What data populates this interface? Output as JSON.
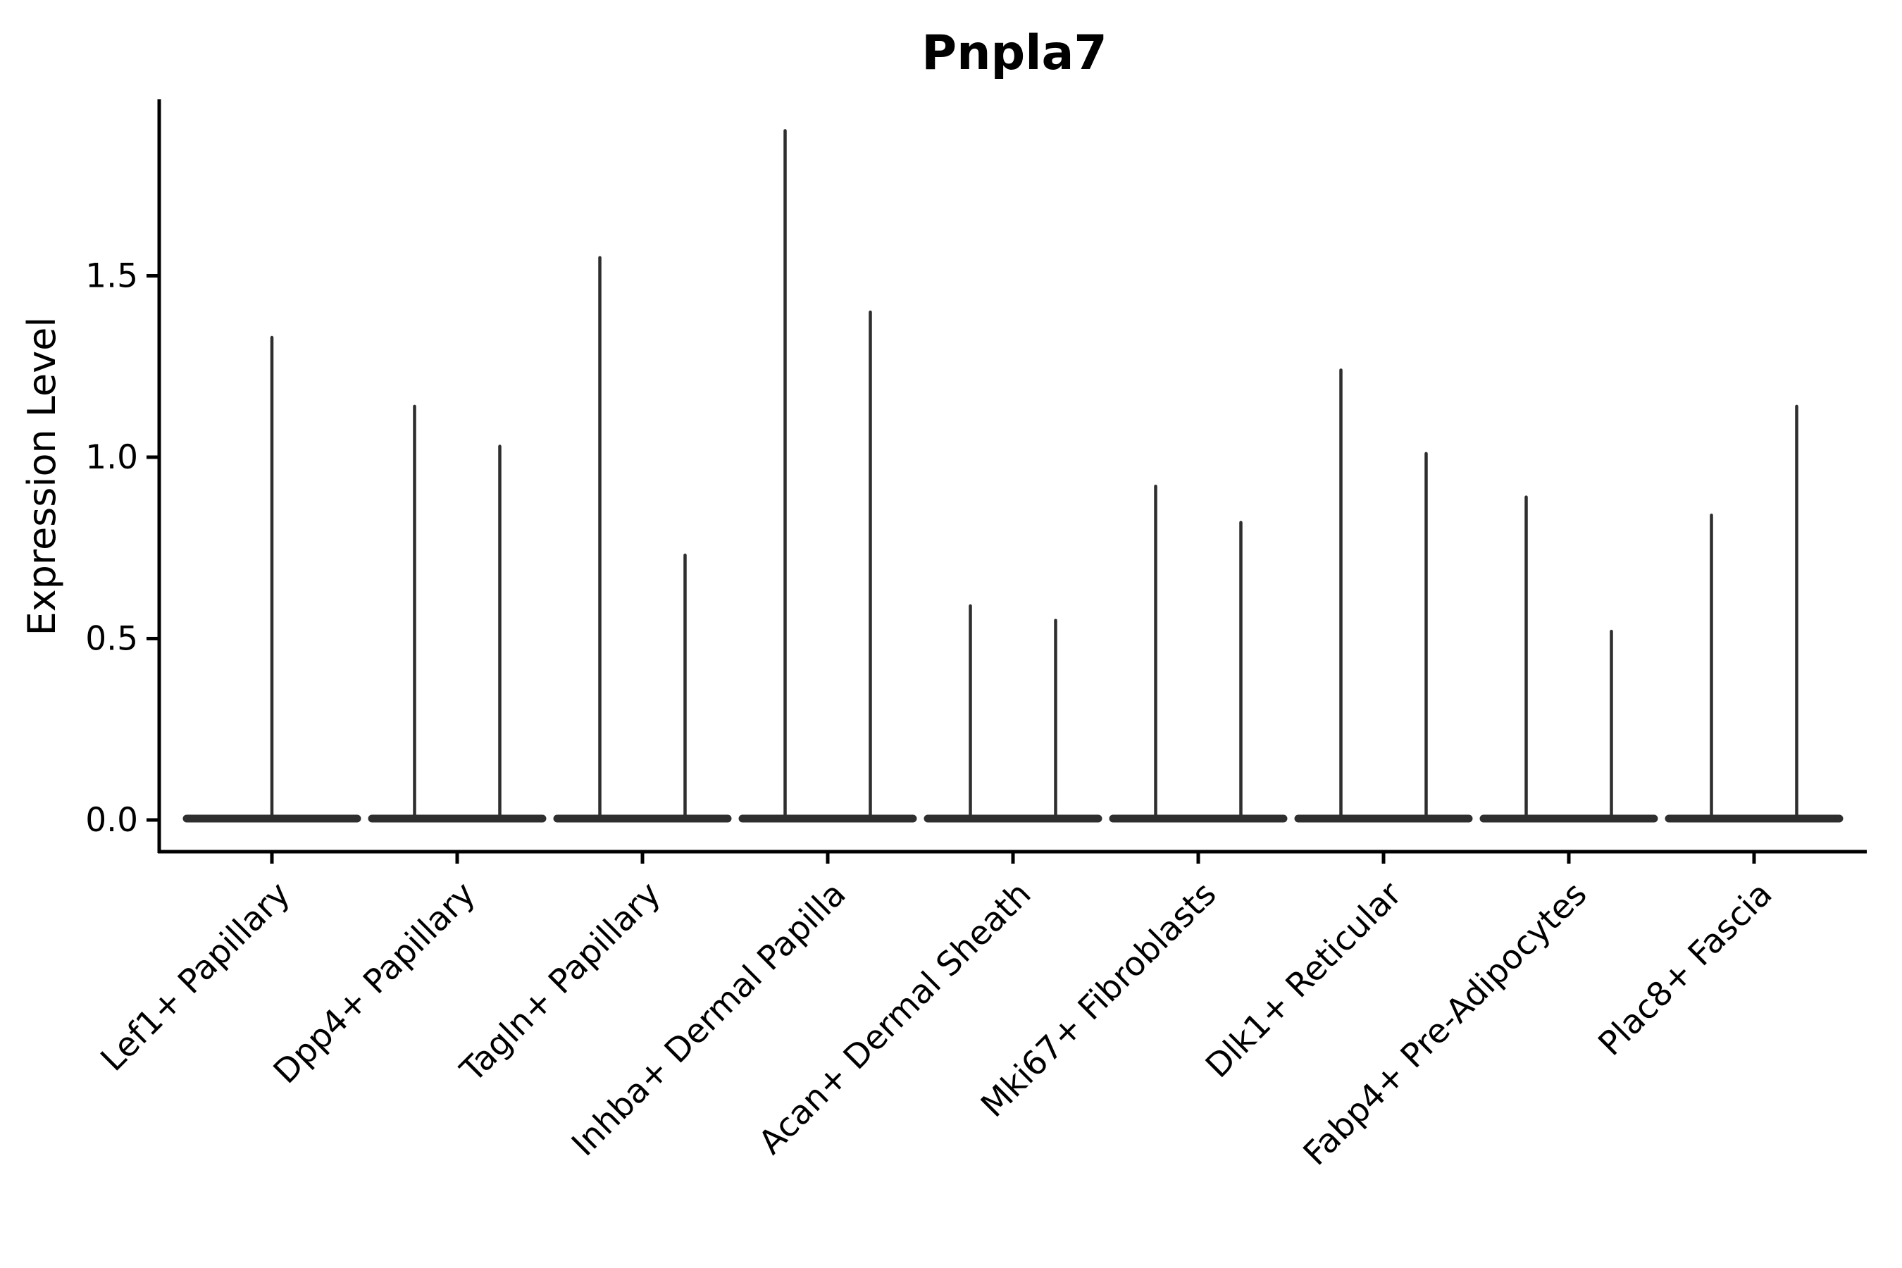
{
  "figure": {
    "title": "Pnpla7",
    "background_color": "#ffffff",
    "axis_color": "#000000",
    "violin_color": "#2e2e2e"
  },
  "chart_data": {
    "type": "violin",
    "title": "Pnpla7",
    "xlabel": "",
    "ylabel": "Expression Level",
    "ylim": [
      -0.09,
      1.99
    ],
    "ytick_labels": [
      "0.0",
      "0.5",
      "1.0",
      "1.5"
    ],
    "ytick_values": [
      0.0,
      0.5,
      1.0,
      1.5
    ],
    "grid": false,
    "legend": "none",
    "description": "Needle-thin violins: each group shows a wide flat base at expression 0 and narrow spikes rising to the maximum expression value.",
    "categories": [
      "Lef1+ Papillary",
      "Dpp4+ Papillary",
      "Tagln+ Papillary",
      "Inhba+ Dermal Papilla",
      "Acan+ Dermal Sheath",
      "Mki67+ Fibroblasts",
      "Dlk1+ Reticular",
      "Fabp4+ Pre-Adipocytes",
      "Plac8+ Fascia"
    ],
    "base_value": 0.0,
    "base_halfwidth_frac": 0.46,
    "groups": [
      {
        "label": "Lef1+ Papillary",
        "spikes": [
          {
            "offset_frac": 0.0,
            "max": 1.33
          }
        ]
      },
      {
        "label": "Dpp4+ Papillary",
        "spikes": [
          {
            "offset_frac": -0.23,
            "max": 1.14
          },
          {
            "offset_frac": 0.23,
            "max": 1.03
          }
        ]
      },
      {
        "label": "Tagln+ Papillary",
        "spikes": [
          {
            "offset_frac": -0.23,
            "max": 1.55
          },
          {
            "offset_frac": 0.23,
            "max": 0.73
          }
        ]
      },
      {
        "label": "Inhba+ Dermal Papilla",
        "spikes": [
          {
            "offset_frac": -0.23,
            "max": 1.9
          },
          {
            "offset_frac": 0.23,
            "max": 1.4
          }
        ]
      },
      {
        "label": "Acan+ Dermal Sheath",
        "spikes": [
          {
            "offset_frac": -0.23,
            "max": 0.59
          },
          {
            "offset_frac": 0.23,
            "max": 0.55
          }
        ]
      },
      {
        "label": "Mki67+ Fibroblasts",
        "spikes": [
          {
            "offset_frac": -0.23,
            "max": 0.92
          },
          {
            "offset_frac": 0.23,
            "max": 0.82
          }
        ]
      },
      {
        "label": "Dlk1+ Reticular",
        "spikes": [
          {
            "offset_frac": -0.23,
            "max": 1.24
          },
          {
            "offset_frac": 0.23,
            "max": 1.01
          }
        ]
      },
      {
        "label": "Fabp4+ Pre-Adipocytes",
        "spikes": [
          {
            "offset_frac": -0.23,
            "max": 0.89
          },
          {
            "offset_frac": 0.23,
            "max": 0.52
          }
        ]
      },
      {
        "label": "Plac8+ Fascia",
        "spikes": [
          {
            "offset_frac": -0.23,
            "max": 0.84
          },
          {
            "offset_frac": 0.23,
            "max": 1.14
          }
        ]
      }
    ]
  }
}
